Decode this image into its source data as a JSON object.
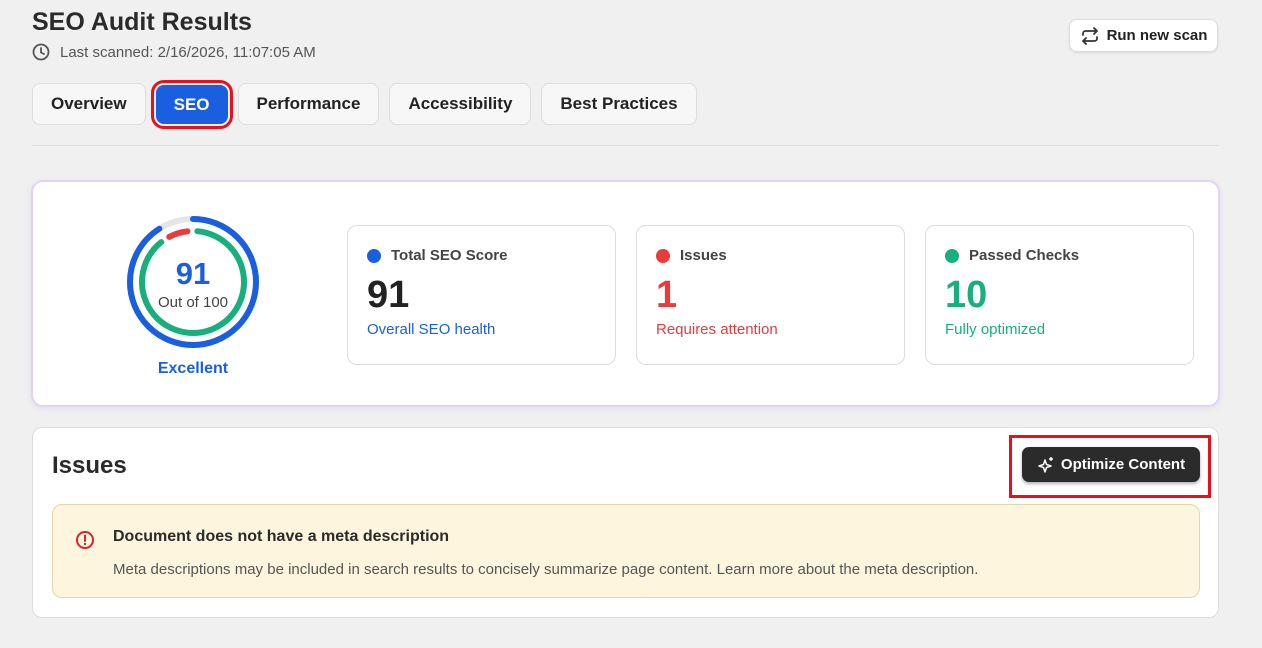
{
  "header": {
    "title": "SEO Audit Results",
    "last_scanned": "Last scanned: 2/16/2026, 11:07:05 AM",
    "run_button": "Run new scan"
  },
  "tabs": [
    {
      "label": "Overview",
      "active": false
    },
    {
      "label": "SEO",
      "active": true
    },
    {
      "label": "Performance",
      "active": false
    },
    {
      "label": "Accessibility",
      "active": false
    },
    {
      "label": "Best Practices",
      "active": false
    }
  ],
  "summary": {
    "score": "91",
    "score_sub": "Out of 100",
    "grade": "Excellent",
    "score_percent": 91,
    "passed_fraction": 0.909,
    "issues_fraction": 0.091,
    "cards": [
      {
        "label": "Total SEO Score",
        "value": "91",
        "sub": "Overall SEO health",
        "color": "#1a5fe0"
      },
      {
        "label": "Issues",
        "value": "1",
        "sub": "Requires attention",
        "color": "#ea3b3b"
      },
      {
        "label": "Passed Checks",
        "value": "10",
        "sub": "Fully optimized",
        "color": "#17b07d"
      }
    ]
  },
  "issues": {
    "title": "Issues",
    "optimize_button": "Optimize Content",
    "items": [
      {
        "title": "Document does not have a meta description",
        "description": "Meta descriptions may be included in search results to concisely summarize page content. Learn more about the meta description."
      }
    ]
  }
}
